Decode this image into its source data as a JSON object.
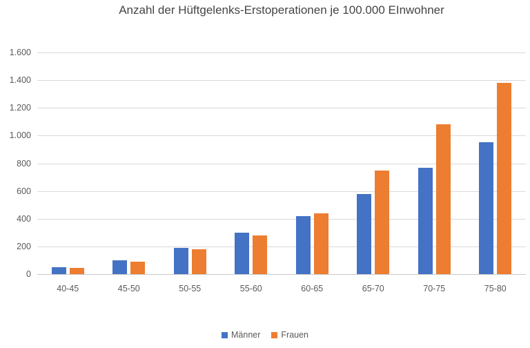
{
  "chart_data": {
    "type": "bar",
    "title": "Anzahl der Hüftgelenks-Erstoperationen je 100.000 EInwohner",
    "categories": [
      "40-45",
      "45-50",
      "50-55",
      "55-60",
      "60-65",
      "65-70",
      "70-75",
      "75-80"
    ],
    "series": [
      {
        "name": "Männer",
        "color": "#4472C4",
        "values": [
          50,
          100,
          190,
          300,
          420,
          580,
          770,
          950
        ]
      },
      {
        "name": "Frauen",
        "color": "#ED7D31",
        "values": [
          45,
          90,
          180,
          280,
          440,
          750,
          1080,
          1380
        ]
      }
    ],
    "xlabel": "",
    "ylabel": "",
    "ylim": [
      0,
      1600
    ],
    "ytick_step": 200,
    "ytick_labels": [
      "0",
      "200",
      "400",
      "600",
      "800",
      "1.000",
      "1.200",
      "1.400",
      "1.600"
    ],
    "grid": true,
    "legend_position": "bottom"
  },
  "colors": {
    "bar_blue": "#4472C4",
    "bar_orange": "#ED7D31",
    "gridline": "#D9D9D9",
    "axis_line": "#C8C8C8",
    "tick_text": "#595959",
    "title_text": "#444444",
    "background": "#FFFFFF"
  }
}
